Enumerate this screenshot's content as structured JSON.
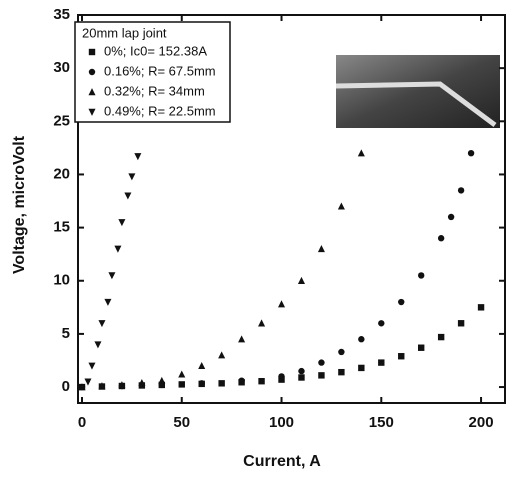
{
  "chart_data": {
    "type": "scatter",
    "xlabel": "Current, A",
    "ylabel": "Voltage, microVolt",
    "xlim": [
      -2,
      212
    ],
    "ylim": [
      -1.5,
      35
    ],
    "xticks": [
      0,
      50,
      100,
      150,
      200
    ],
    "yticks": [
      0,
      5,
      10,
      15,
      20,
      25,
      30,
      35
    ],
    "legend_title": "20mm lap joint",
    "legend": "upper left",
    "series": [
      {
        "name": "0%; Ic0= 152.38A",
        "color": "#111111",
        "marker": "square",
        "x": [
          0,
          10,
          20,
          30,
          40,
          50,
          60,
          70,
          80,
          90,
          100,
          110,
          120,
          130,
          140,
          150,
          160,
          170,
          180,
          190,
          200
        ],
        "values": [
          0,
          0.05,
          0.1,
          0.15,
          0.2,
          0.25,
          0.3,
          0.35,
          0.45,
          0.55,
          0.7,
          0.9,
          1.1,
          1.4,
          1.8,
          2.3,
          2.9,
          3.7,
          4.7,
          6.0,
          7.5
        ]
      },
      {
        "name": "0.16%; R= 67.5mm",
        "color": "#111111",
        "marker": "circle",
        "x": [
          0,
          20,
          40,
          60,
          80,
          100,
          110,
          120,
          130,
          140,
          150,
          160,
          170,
          180,
          185,
          190,
          195
        ],
        "values": [
          0,
          0.1,
          0.2,
          0.35,
          0.6,
          1.0,
          1.5,
          2.3,
          3.3,
          4.5,
          6.0,
          8.0,
          10.5,
          14.0,
          16.0,
          18.5,
          22.0
        ]
      },
      {
        "name": "0.32%; R= 34mm",
        "color": "#111111",
        "marker": "triangle",
        "x": [
          0,
          10,
          20,
          30,
          40,
          50,
          60,
          70,
          80,
          90,
          100,
          110,
          120,
          130,
          140
        ],
        "values": [
          0,
          0.1,
          0.2,
          0.4,
          0.6,
          1.2,
          2.0,
          3.0,
          4.5,
          6.0,
          7.8,
          10.0,
          13.0,
          17.0,
          22.0
        ]
      },
      {
        "name": "0.49%; R= 22.5mm",
        "color": "#111111",
        "marker": "triangle-down",
        "x": [
          3,
          5,
          8,
          10,
          13,
          15,
          18,
          20,
          23,
          25,
          28
        ],
        "values": [
          0.5,
          2.0,
          4.0,
          6.0,
          8.0,
          10.5,
          13.0,
          15.5,
          18.0,
          19.8,
          21.7
        ]
      }
    ]
  }
}
